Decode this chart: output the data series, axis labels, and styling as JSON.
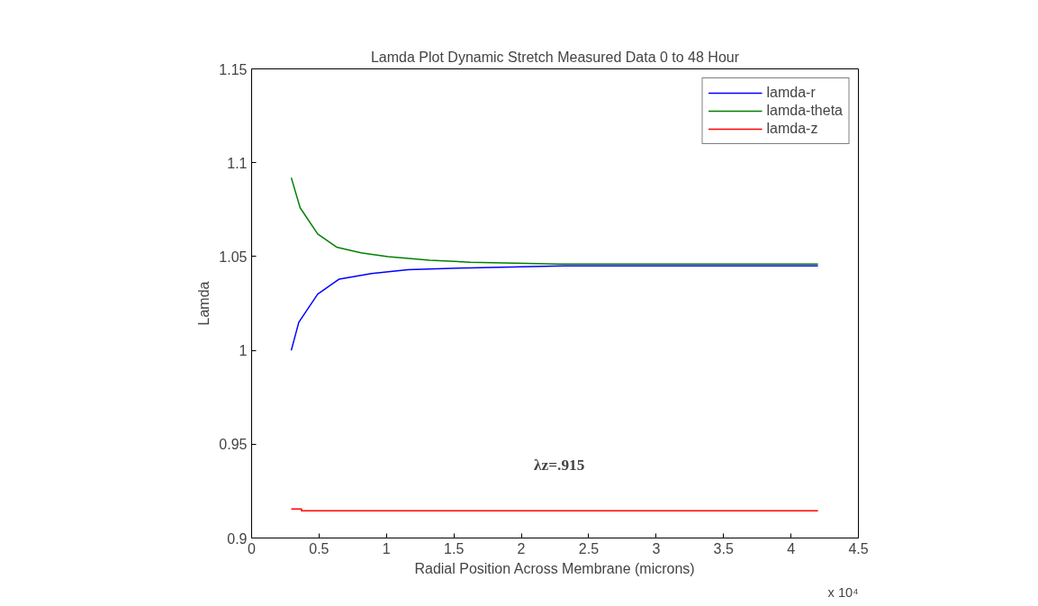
{
  "chart_data": {
    "type": "line",
    "title": "Lamda Plot Dynamic Stretch Measured Data 0 to 48 Hour",
    "xlabel": "Radial Position Across Membrane (microns)",
    "ylabel": "Lamda",
    "series": [
      {
        "name": "lamda-r",
        "color": "#0000ff",
        "x": [
          0.294,
          0.35,
          0.49,
          0.65,
          0.89,
          1.16,
          1.63,
          2.32,
          4.2
        ],
        "values": [
          1.0,
          1.015,
          1.03,
          1.038,
          1.041,
          1.043,
          1.044,
          1.045,
          1.045
        ]
      },
      {
        "name": "lamda-theta",
        "color": "#008000",
        "x": [
          0.294,
          0.36,
          0.49,
          0.63,
          0.81,
          1.01,
          1.32,
          1.62,
          2.28,
          4.2
        ],
        "values": [
          1.092,
          1.076,
          1.062,
          1.055,
          1.052,
          1.05,
          1.048,
          1.047,
          1.046,
          1.046
        ]
      },
      {
        "name": "lamda-z",
        "color": "#ff0000",
        "x": [
          0.294,
          0.37,
          0.37,
          4.2
        ],
        "values": [
          0.9155,
          0.9155,
          0.9145,
          0.9145
        ]
      }
    ],
    "xlim": [
      0,
      4.5
    ],
    "xticks": [
      0,
      0.5,
      1,
      1.5,
      2,
      2.5,
      3,
      3.5,
      4,
      4.5
    ],
    "ylim": [
      0.9,
      1.15
    ],
    "yticks": [
      0.9,
      0.95,
      1,
      1.05,
      1.1,
      1.15
    ],
    "annotations": [
      "λz=.915",
      "x 10⁴"
    ],
    "legend": "top right",
    "grid": false,
    "marker": "none",
    "line_style": "solid"
  }
}
